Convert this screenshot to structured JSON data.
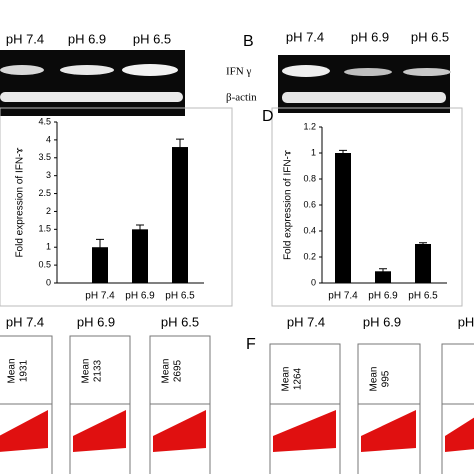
{
  "chart_data": [
    {
      "type": "bar",
      "ylabel": "Fold expression of IFN-ɤ",
      "categories": [
        "pH 7.4",
        "pH 6.9",
        "pH 6.5"
      ],
      "values": [
        1,
        1.5,
        3.8
      ],
      "errors": [
        0.22,
        0.12,
        0.22
      ],
      "color": "#000000",
      "ylim": [
        0,
        4.5
      ],
      "yticks": [
        0,
        0.5,
        1,
        1.5,
        2,
        2.5,
        3,
        3.5,
        4,
        4.5
      ]
    },
    {
      "type": "bar",
      "panel": "D",
      "ylabel": "Fold expression of IFN-ɤ",
      "categories": [
        "pH 7.4",
        "pH 6.9",
        "pH 6.5"
      ],
      "values": [
        1,
        0.09,
        0.3
      ],
      "errors": [
        0.02,
        0.02,
        0.01
      ],
      "color": "#000000",
      "ylim": [
        0,
        1.2
      ],
      "yticks": [
        0,
        0.2,
        0.4,
        0.6,
        0.8,
        1,
        1.2
      ]
    }
  ],
  "gels": {
    "left": {
      "lanes": [
        "pH 7.4",
        "pH 6.9",
        "pH 6.5"
      ]
    },
    "right": {
      "panel": "B",
      "lanes": [
        "pH 7.4",
        "pH 6.9",
        "pH 6.5"
      ],
      "rows": [
        "IFN γ",
        "β-actin"
      ]
    }
  },
  "flow": {
    "left": {
      "panels": [
        {
          "label": "pH 7.4",
          "mean_label": "Mean",
          "mean": 1931
        },
        {
          "label": "pH 6.9",
          "mean_label": "Mean",
          "mean": 2133
        },
        {
          "label": "pH 6.5",
          "mean_label": "Mean",
          "mean": 2695
        }
      ]
    },
    "right": {
      "panel": "F",
      "panels": [
        {
          "label": "pH 7.4",
          "mean_label": "Mean",
          "mean": 1264
        },
        {
          "label": "pH 6.9",
          "mean_label": "Mean",
          "mean": 995
        },
        {
          "label": "pH"
        }
      ]
    }
  }
}
